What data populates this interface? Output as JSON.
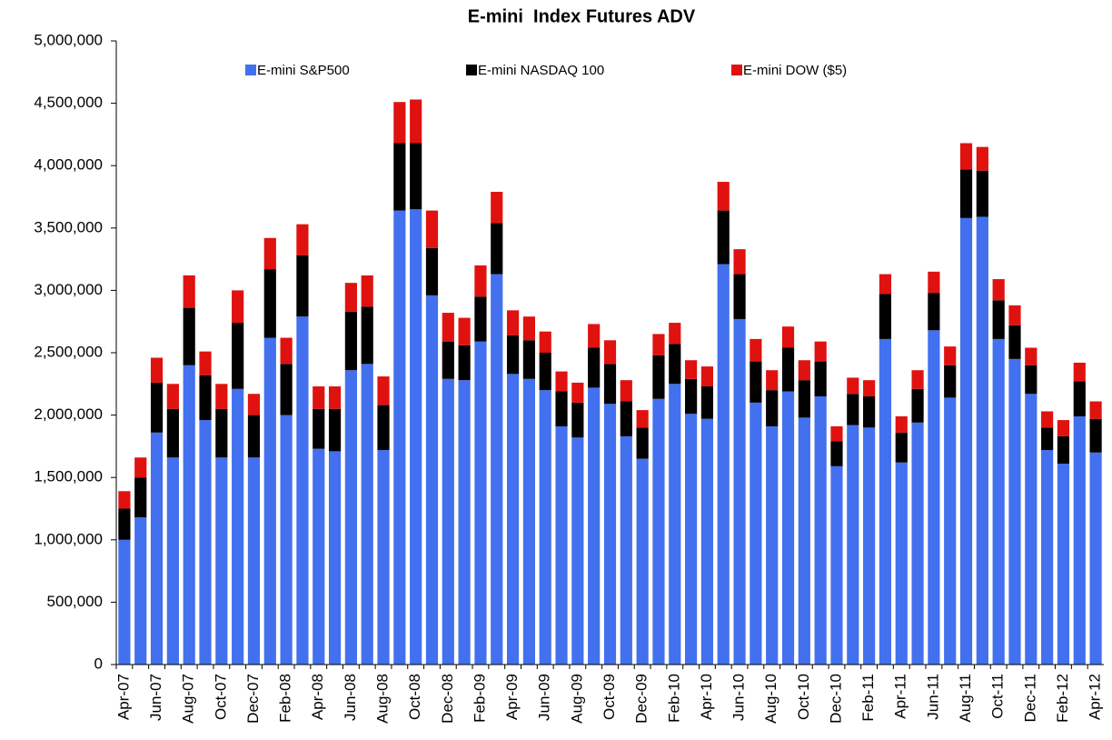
{
  "chart_data": {
    "type": "stacked_bar",
    "title": "E-mini  Index Futures ADV",
    "categories": [
      "Apr-07",
      null,
      "Jun-07",
      null,
      "Aug-07",
      null,
      "Oct-07",
      null,
      "Dec-07",
      null,
      "Feb-08",
      null,
      "Apr-08",
      null,
      "Jun-08",
      null,
      "Aug-08",
      null,
      "Oct-08",
      null,
      "Dec-08",
      null,
      "Feb-09",
      null,
      "Apr-09",
      null,
      "Jun-09",
      null,
      "Aug-09",
      null,
      "Oct-09",
      null,
      "Dec-09",
      null,
      "Feb-10",
      null,
      "Apr-10",
      null,
      "Jun-10",
      null,
      "Aug-10",
      null,
      "Oct-10",
      null,
      "Dec-10",
      null,
      "Feb-11",
      null,
      "Apr-11",
      null,
      "Jun-11",
      null,
      "Aug-11",
      null,
      "Oct-11",
      null,
      "Dec-11",
      null,
      "Feb-12",
      null,
      "Apr-12"
    ],
    "series": [
      {
        "name": "E-mini S&P500",
        "color": "#4270ee",
        "values": [
          1000000,
          1180000,
          1860000,
          1660000,
          2400000,
          1960000,
          1660000,
          2210000,
          1660000,
          2620000,
          2000000,
          2790000,
          1730000,
          1710000,
          2360000,
          2410000,
          1720000,
          3640000,
          3650000,
          2960000,
          2290000,
          2280000,
          2590000,
          3130000,
          2330000,
          2290000,
          2200000,
          1910000,
          1820000,
          2220000,
          2090000,
          1830000,
          1650000,
          2130000,
          2250000,
          2010000,
          1970000,
          3210000,
          2770000,
          2100000,
          1910000,
          2190000,
          1980000,
          2150000,
          1590000,
          1920000,
          1900000,
          2610000,
          1620000,
          1940000,
          2680000,
          2140000,
          3580000,
          3590000,
          2610000,
          2450000,
          2170000,
          1720000,
          1610000,
          1990000,
          1700000
        ]
      },
      {
        "name": "E-mini NASDAQ 100",
        "color": "#000000",
        "values": [
          250000,
          320000,
          400000,
          390000,
          460000,
          360000,
          390000,
          530000,
          340000,
          550000,
          410000,
          490000,
          320000,
          340000,
          470000,
          460000,
          360000,
          540000,
          530000,
          380000,
          300000,
          280000,
          360000,
          410000,
          310000,
          310000,
          300000,
          280000,
          280000,
          320000,
          320000,
          280000,
          250000,
          350000,
          320000,
          280000,
          260000,
          430000,
          360000,
          330000,
          290000,
          350000,
          300000,
          280000,
          200000,
          250000,
          250000,
          360000,
          240000,
          270000,
          300000,
          260000,
          390000,
          370000,
          310000,
          270000,
          230000,
          180000,
          220000,
          280000,
          270000
        ]
      },
      {
        "name": "E-mini DOW ($5)",
        "color": "#e0120f",
        "values": [
          140000,
          160000,
          200000,
          200000,
          260000,
          190000,
          200000,
          260000,
          170000,
          250000,
          210000,
          250000,
          180000,
          180000,
          230000,
          250000,
          230000,
          330000,
          350000,
          300000,
          230000,
          220000,
          250000,
          250000,
          200000,
          190000,
          170000,
          160000,
          160000,
          190000,
          190000,
          170000,
          140000,
          170000,
          170000,
          150000,
          160000,
          230000,
          200000,
          180000,
          160000,
          170000,
          160000,
          160000,
          120000,
          130000,
          130000,
          160000,
          130000,
          150000,
          170000,
          150000,
          210000,
          190000,
          170000,
          160000,
          140000,
          130000,
          130000,
          150000,
          140000
        ]
      }
    ],
    "ylim": [
      0,
      5000000
    ],
    "yticks": [
      0,
      {
        "value": 500000,
        "label": "500,000"
      },
      {
        "value": 1000000,
        "label": "1,000,000"
      },
      {
        "value": 1500000,
        "label": "1,500,000"
      },
      {
        "value": 2000000,
        "label": "2,000,000"
      },
      {
        "value": 2500000,
        "label": "2,500,000"
      },
      {
        "value": 3000000,
        "label": "3,000,000"
      },
      {
        "value": 3500000,
        "label": "3,500,000"
      },
      {
        "value": 4000000,
        "label": "4,000,000"
      },
      {
        "value": 4500000,
        "label": "4,500,000"
      },
      {
        "value": 5000000,
        "label": "5,000,000"
      }
    ],
    "grid": false,
    "legend": "top"
  }
}
